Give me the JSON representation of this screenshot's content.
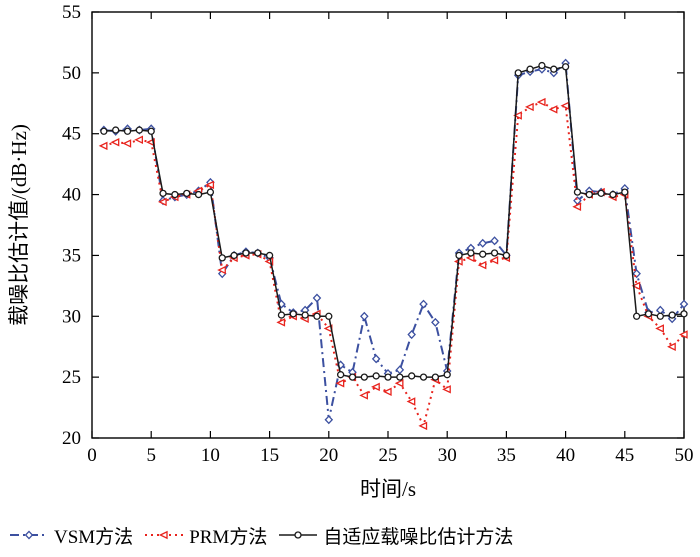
{
  "chart_data": {
    "type": "line",
    "title": "",
    "xlabel": "时间/s",
    "ylabel": "载噪比估计值/(dB·Hz)",
    "xlim": [
      0,
      50
    ],
    "ylim": [
      20,
      55
    ],
    "xticks": [
      0,
      5,
      10,
      15,
      20,
      25,
      30,
      35,
      40,
      45,
      50
    ],
    "yticks": [
      20,
      25,
      30,
      35,
      40,
      45,
      50,
      55
    ],
    "grid": false,
    "legend_position": "bottom",
    "x": [
      1,
      2,
      3,
      4,
      5,
      6,
      7,
      8,
      9,
      10,
      11,
      12,
      13,
      14,
      15,
      16,
      17,
      18,
      19,
      20,
      21,
      22,
      23,
      24,
      25,
      26,
      27,
      28,
      29,
      30,
      31,
      32,
      33,
      34,
      35,
      36,
      37,
      38,
      39,
      40,
      41,
      42,
      43,
      44,
      45,
      46,
      47,
      48,
      49,
      50
    ],
    "series": [
      {
        "name": "VSM方法",
        "color": "#3c50a0",
        "line": "dashdot",
        "marker": "diamond",
        "values": [
          45.3,
          45.2,
          45.4,
          45.3,
          45.4,
          39.5,
          39.8,
          40.0,
          40.3,
          41.0,
          33.5,
          35.0,
          35.3,
          35.2,
          34.8,
          31.0,
          30.3,
          30.5,
          31.5,
          21.5,
          26.0,
          25.4,
          30.0,
          26.5,
          25.3,
          25.6,
          28.5,
          31.0,
          29.5,
          25.5,
          35.2,
          35.6,
          36.0,
          36.2,
          35.0,
          49.8,
          50.1,
          50.3,
          50.0,
          50.8,
          39.5,
          40.3,
          40.2,
          40.0,
          40.5,
          33.5,
          30.3,
          30.5,
          29.8,
          31.0
        ]
      },
      {
        "name": "PRM方法",
        "color": "#e8231d",
        "line": "dotted",
        "marker": "triangle-left",
        "values": [
          44.0,
          44.3,
          44.2,
          44.5,
          44.3,
          39.4,
          39.8,
          40.0,
          40.3,
          40.8,
          33.8,
          34.8,
          35.0,
          35.1,
          34.5,
          29.5,
          30.0,
          29.8,
          30.2,
          29.0,
          24.5,
          25.0,
          23.5,
          24.2,
          23.8,
          24.5,
          23.0,
          21.0,
          24.8,
          24.0,
          34.5,
          34.8,
          34.2,
          34.6,
          34.8,
          46.5,
          47.2,
          47.6,
          47.0,
          47.3,
          39.0,
          40.0,
          40.2,
          39.8,
          40.0,
          32.5,
          30.0,
          29.0,
          27.5,
          28.5
        ]
      },
      {
        "name": "自适应载噪比估计方法",
        "color": "#1a1a1a",
        "line": "solid",
        "marker": "circle",
        "values": [
          45.2,
          45.3,
          45.2,
          45.3,
          45.2,
          40.1,
          40.0,
          40.1,
          40.0,
          40.2,
          34.8,
          35.0,
          35.2,
          35.2,
          35.0,
          30.1,
          30.2,
          30.1,
          30.0,
          30.0,
          25.2,
          25.0,
          25.0,
          25.1,
          25.0,
          25.0,
          25.1,
          25.0,
          25.0,
          25.2,
          35.0,
          35.2,
          35.1,
          35.2,
          35.0,
          50.0,
          50.3,
          50.6,
          50.3,
          50.5,
          40.2,
          40.0,
          40.1,
          40.0,
          40.2,
          30.0,
          30.2,
          30.0,
          30.1,
          30.2
        ]
      }
    ]
  }
}
